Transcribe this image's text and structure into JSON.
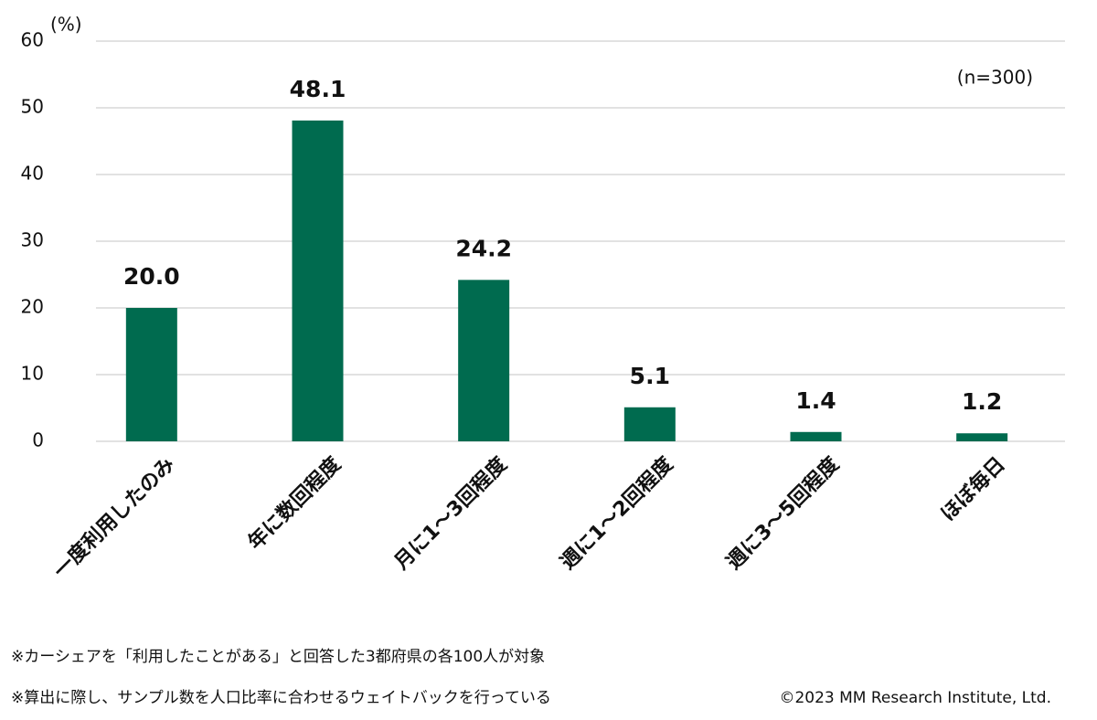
{
  "chart_data": {
    "type": "bar",
    "axis_unit": "(%)",
    "annotation": "(n=300)",
    "categories": [
      "一度利用したのみ",
      "年に数回程度",
      "月に1～3回程度",
      "週に1～2回程度",
      "週に3～5回程度",
      "ほぼ毎日"
    ],
    "values": [
      20.0,
      48.1,
      24.2,
      5.1,
      1.4,
      1.2
    ],
    "value_labels": [
      "20.0",
      "48.1",
      "24.2",
      "5.1",
      "1.4",
      "1.2"
    ],
    "color": "#006b4f",
    "ylim": [
      0,
      60
    ],
    "yticks": [
      0,
      10,
      20,
      30,
      40,
      50,
      60
    ],
    "grid": true,
    "notes": [
      "※カーシェアを「利用したことがある」と回答した3都府県の各100人が対象",
      "※算出に際し、サンプル数を人口比率に合わせるウェイトバックを行っている"
    ],
    "copyright": "©2023 MM Research Institute, Ltd."
  }
}
